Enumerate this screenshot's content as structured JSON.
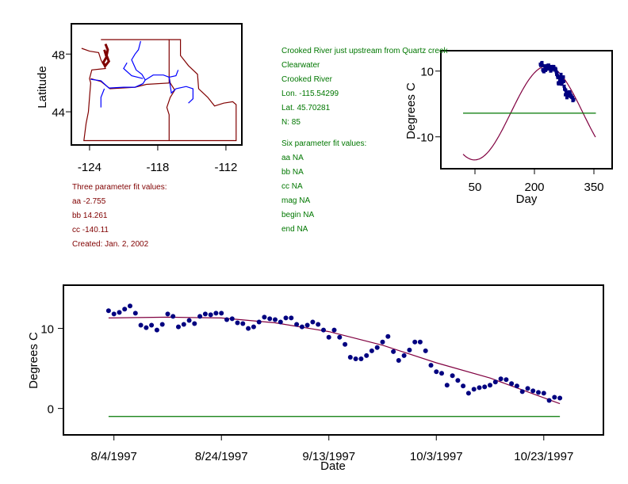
{
  "colors": {
    "frame": "#000000",
    "state_border": "#800000",
    "river": "#0000ff",
    "fit_curve": "#800040",
    "threshold_line": "#007700",
    "points": "#000080",
    "info_red": "#800000",
    "info_green": "#007700"
  },
  "site_info": {
    "description": "Crooked River just upstream  from Quartz creek",
    "basin": "Clearwater",
    "stream": "Crooked River",
    "lon": "Lon. -115.54299",
    "lat": "Lat. 45.70281",
    "n": "N: 85"
  },
  "three_param": {
    "title": "Three parameter fit values:",
    "aa": "aa -2.755",
    "bb": "bb 14.261",
    "cc": "cc -140.11",
    "created": "Created:   Jan. 2, 2002"
  },
  "six_param": {
    "title": "Six parameter fit values:",
    "aa": "aa NA",
    "bb": "bb NA",
    "cc": "cc NA",
    "mag": "mag NA",
    "begin": "begin NA",
    "end": "end NA"
  },
  "chart_data": [
    {
      "type": "map",
      "name": "location-map",
      "ylabel": "Latitude",
      "xlabel": "",
      "xticks": [
        "-124",
        "-118",
        "-112"
      ],
      "yticks": [
        "48",
        "44"
      ],
      "xtick_values": [
        -124,
        -118,
        -112
      ],
      "ytick_values": [
        48,
        44
      ],
      "xlim": [
        -125.6,
        -110.6
      ],
      "ylim": [
        41.7,
        50.1
      ],
      "layers": [
        "state borders (WA, OR, ID)",
        "rivers"
      ]
    },
    {
      "type": "line",
      "name": "annual-fit-plot",
      "xlabel": "Day",
      "ylabel": "Degrees C",
      "xticks": [
        "50",
        "200",
        "350"
      ],
      "xtick_values": [
        50,
        200,
        350
      ],
      "yticks": [
        "10",
        "-10"
      ],
      "ytick_values": [
        10,
        -10
      ],
      "xlim": [
        -36,
        396
      ],
      "ylim": [
        -19.7,
        16.2
      ],
      "fit": {
        "aa": -2.755,
        "bb": 14.261,
        "cc": -140.11,
        "x_range": [
          20,
          355
        ]
      },
      "threshold": {
        "y": -2.8,
        "x_range": [
          20,
          355
        ]
      },
      "series": [
        {
          "name": "observations",
          "x": [
            215,
            216,
            217,
            218,
            219,
            220,
            221,
            222,
            223,
            224,
            225,
            226,
            227,
            228,
            229,
            230,
            231,
            232,
            233,
            234,
            235,
            236,
            237,
            238,
            239,
            240,
            241,
            242,
            243,
            244,
            245,
            246,
            247,
            248,
            249,
            250,
            251,
            252,
            253,
            254,
            255,
            256,
            257,
            258,
            259,
            260,
            261,
            262,
            263,
            264,
            265,
            266,
            267,
            268,
            269,
            270,
            271,
            272,
            273,
            274,
            275,
            276,
            277,
            278,
            279,
            280,
            281,
            282,
            283,
            284,
            285,
            286,
            287,
            288,
            289,
            290,
            291,
            292,
            293,
            294,
            295,
            296,
            297,
            298,
            299
          ],
          "values": [
            12.1,
            11.7,
            11.9,
            12.3,
            12.6,
            11.7,
            10.4,
            10.1,
            10.4,
            9.8,
            10.5,
            11.6,
            11.3,
            10.2,
            10.5,
            11.0,
            10.6,
            11.4,
            11.7,
            11.6,
            11.8,
            11.8,
            11.1,
            11.2,
            10.7,
            10.6,
            10.0,
            10.3,
            10.9,
            11.4,
            11.2,
            11.2,
            10.8,
            11.4,
            11.3,
            10.6,
            10.3,
            10.5,
            10.8,
            10.5,
            9.8,
            9.0,
            9.5,
            8.6,
            8.0,
            6.4,
            6.1,
            6.2,
            6.6,
            7.2,
            7.5,
            8.3,
            9.0,
            7.2,
            6.0,
            6.6,
            7.3,
            8.2,
            8.2,
            6.8,
            5.4,
            4.6,
            4.4,
            2.8,
            4.2,
            3.6,
            2.8,
            1.9,
            2.3,
            2.5,
            2.7,
            2.9,
            3.3,
            3.7,
            3.5,
            3.1,
            2.8,
            2.2,
            2.5,
            2.1,
            2.0,
            1.9,
            1.0,
            1.4,
            1.3
          ]
        }
      ]
    },
    {
      "type": "scatter",
      "name": "daily-temperature-plot",
      "xlabel": "Date",
      "ylabel": "Degrees C",
      "xticks": [
        "8/4/1997",
        "8/24/1997",
        "9/13/1997",
        "10/3/1997",
        "10/23/1997"
      ],
      "xtick_values": [
        0,
        20,
        40,
        60,
        80
      ],
      "yticks": [
        "10",
        "0"
      ],
      "ytick_values": [
        10,
        0
      ],
      "xlim": [
        -9.4,
        91.1
      ],
      "ylim": [
        -3.3,
        15.4
      ],
      "threshold": {
        "y": -1.0,
        "x_range": [
          -1,
          83
        ]
      },
      "series": [
        {
          "name": "observations",
          "x_day_offset": [
            -1,
            0,
            1,
            2,
            3,
            4,
            5,
            6,
            7,
            8,
            9,
            10,
            11,
            12,
            13,
            14,
            15,
            16,
            17,
            18,
            19,
            20,
            21,
            22,
            23,
            24,
            25,
            26,
            27,
            28,
            29,
            30,
            31,
            32,
            33,
            34,
            35,
            36,
            37,
            38,
            39,
            40,
            41,
            42,
            43,
            44,
            45,
            46,
            47,
            48,
            49,
            50,
            51,
            52,
            53,
            54,
            55,
            56,
            57,
            58,
            59,
            60,
            61,
            62,
            63,
            64,
            65,
            66,
            67,
            68,
            69,
            70,
            71,
            72,
            73,
            74,
            75,
            76,
            77,
            78,
            79,
            80,
            81,
            82,
            83
          ],
          "values": [
            12.2,
            11.8,
            12.0,
            12.4,
            12.8,
            11.9,
            10.4,
            10.1,
            10.4,
            9.8,
            10.5,
            11.8,
            11.5,
            10.2,
            10.5,
            11.0,
            10.6,
            11.5,
            11.8,
            11.7,
            11.9,
            11.9,
            11.1,
            11.2,
            10.7,
            10.6,
            10.0,
            10.2,
            10.8,
            11.4,
            11.2,
            11.1,
            10.8,
            11.3,
            11.3,
            10.5,
            10.2,
            10.4,
            10.8,
            10.5,
            9.8,
            8.9,
            9.8,
            8.9,
            8.0,
            6.4,
            6.2,
            6.2,
            6.6,
            7.2,
            7.6,
            8.3,
            9.0,
            7.1,
            6.0,
            6.6,
            7.3,
            8.3,
            8.3,
            7.2,
            5.4,
            4.6,
            4.4,
            2.9,
            4.1,
            3.5,
            2.8,
            1.9,
            2.4,
            2.6,
            2.7,
            2.9,
            3.3,
            3.7,
            3.6,
            3.1,
            2.8,
            2.1,
            2.5,
            2.2,
            2.0,
            1.9,
            1.0,
            1.4,
            1.3
          ]
        },
        {
          "name": "fit",
          "x_day_offset": [
            -1,
            10,
            20,
            30,
            40,
            50,
            60,
            70,
            83
          ],
          "values": [
            11.3,
            11.4,
            11.3,
            10.7,
            9.6,
            7.9,
            5.7,
            3.8,
            0.6
          ]
        }
      ]
    }
  ]
}
